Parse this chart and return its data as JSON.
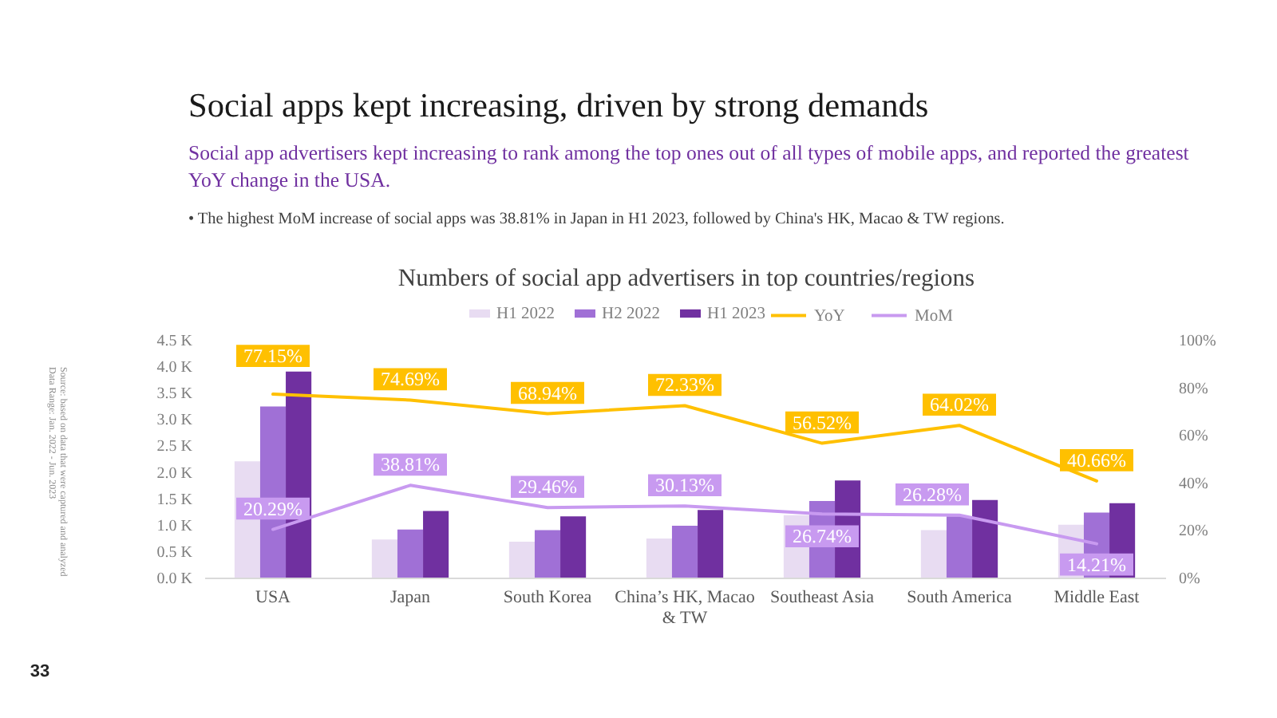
{
  "chart_data": {
    "type": "bar",
    "title": "Social apps kept increasing, driven by strong demands",
    "subtitle": "Social app advertisers kept increasing to rank among the top ones out of all types of mobile apps, and reported the greatest YoY change in the USA.",
    "annotations": [
      "• The highest MoM increase of social apps was 38.81% in Japan in H1 2023, followed by China's HK, Macao & TW regions.",
      "Numbers of social app advertisers in top countries/regions",
      "Source: based on data that were captured and analyzed",
      "Data Range: Jan. 2022 - Jun. 2023",
      "33"
    ],
    "categories": [
      "USA",
      "Japan",
      "South Korea",
      "China’s HK, Macao & TW",
      "Southeast Asia",
      "South America",
      "Middle East"
    ],
    "series": [
      {
        "name": "H1 2022",
        "color": "#E8DCF2",
        "values": [
          2.2,
          0.72,
          0.68,
          0.74,
          1.18,
          0.9,
          1.0
        ]
      },
      {
        "name": "H2 2022",
        "color": "#A070D6",
        "values": [
          3.24,
          0.91,
          0.9,
          0.98,
          1.45,
          1.16,
          1.23
        ]
      },
      {
        "name": "H1 2023",
        "color": "#7030A0",
        "values": [
          3.9,
          1.26,
          1.16,
          1.28,
          1.84,
          1.47,
          1.41
        ]
      },
      {
        "name": "YoY",
        "type": "line",
        "axis": "y2",
        "color": "#FFC000",
        "values": [
          77.15,
          74.69,
          68.94,
          72.33,
          56.52,
          64.02,
          40.66
        ],
        "value_labels": [
          "77.15%",
          "74.69%",
          "68.94%",
          "72.33%",
          "56.52%",
          "64.02%",
          "40.66%"
        ]
      },
      {
        "name": "MoM",
        "type": "line",
        "axis": "y2",
        "color": "#C89AF0",
        "values": [
          20.29,
          38.81,
          29.46,
          30.13,
          26.74,
          26.28,
          14.21
        ],
        "value_labels": [
          "20.29%",
          "38.81%",
          "29.46%",
          "30.13%",
          "26.74%",
          "26.28%",
          "14.21%"
        ]
      }
    ],
    "ylim": [
      0,
      4.5
    ],
    "yticks": [
      {
        "value": 0,
        "label": "0.0 K"
      },
      {
        "value": 0.5,
        "label": "0.5 K"
      },
      {
        "value": 1,
        "label": "1.0 K"
      },
      {
        "value": 1.5,
        "label": "1.5 K"
      },
      {
        "value": 2,
        "label": "2.0 K"
      },
      {
        "value": 2.5,
        "label": "2.5 K"
      },
      {
        "value": 3,
        "label": "3.0 K"
      },
      {
        "value": 3.5,
        "label": "3.5 K"
      },
      {
        "value": 4,
        "label": "4.0 K"
      },
      {
        "value": 4.5,
        "label": "4.5 K"
      }
    ],
    "y2lim": [
      0,
      100
    ],
    "y2ticks": [
      {
        "value": 0,
        "label": "0%"
      },
      {
        "value": 20,
        "label": "20%"
      },
      {
        "value": 40,
        "label": "40%"
      },
      {
        "value": 60,
        "label": "60%"
      },
      {
        "value": 80,
        "label": "80%"
      },
      {
        "value": 100,
        "label": "100%"
      }
    ],
    "legend": "top",
    "grid": false
  }
}
